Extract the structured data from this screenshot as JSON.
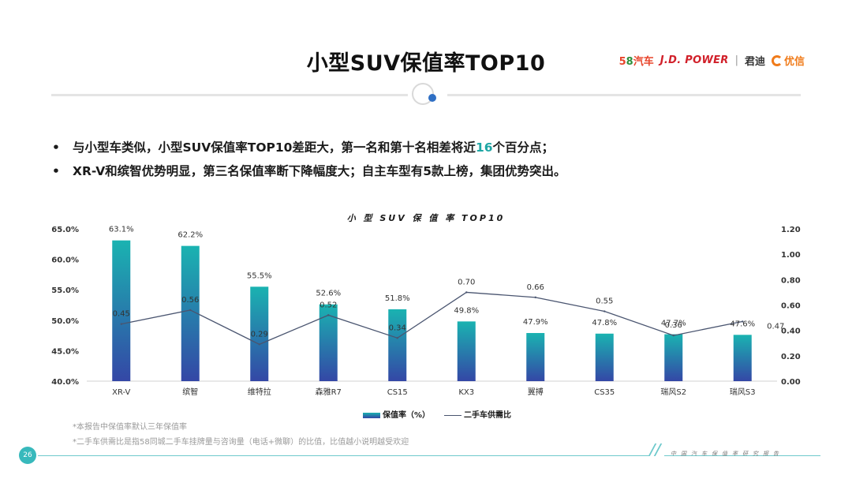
{
  "page": {
    "title": "小型SUV保值率TOP10",
    "bullets": [
      {
        "before": "与小型车类似，小型SUV保值率TOP10差距大，第一名和第十名相差将近",
        "highlight": "16",
        "after": "个百分点；"
      },
      {
        "before": "XR-V和缤智优势明显，第三名保值率断下降幅度大；自主车型有5款上榜，集团优势突出。",
        "highlight": "",
        "after": ""
      }
    ],
    "bullet_symbol": "•",
    "notes": [
      "*本报告中保值率默认三年保值率",
      "*二手车供需比是指58同城二手车挂牌量与咨询量（电话+微聊）的比值，比值越小说明越受欢迎"
    ],
    "page_number": "26",
    "footer_text": "中国汽车保值率研究报告",
    "logos": {
      "brand_58_num_a": "5",
      "brand_58_num_b": "8",
      "brand_58_text": "汽车",
      "jdpower": "J.D. POWER",
      "separator": "|",
      "jundi": "君迪",
      "youxin": "优信"
    }
  },
  "colors": {
    "bar_top": "#1ab3b1",
    "bar_bottom": "#3447a6",
    "line": "#4a5570",
    "accent": "#1fa6a4"
  },
  "chart_data": {
    "type": "bar",
    "title": "小 型 SUV 保 值 率 TOP10",
    "categories": [
      "XR-V",
      "缤智",
      "维特拉",
      "森雅R7",
      "CS15",
      "KX3",
      "翼搏",
      "CS35",
      "瑞风S2",
      "瑞风S3"
    ],
    "series": [
      {
        "name": "保值率（%）",
        "type": "bar",
        "axis": "left",
        "values": [
          63.1,
          62.2,
          55.5,
          52.6,
          51.8,
          49.8,
          47.9,
          47.8,
          47.7,
          47.6
        ],
        "labels": [
          "63.1%",
          "62.2%",
          "55.5%",
          "52.6%",
          "51.8%",
          "49.8%",
          "47.9%",
          "47.8%",
          "47.7%",
          "47.6%"
        ]
      },
      {
        "name": "二手车供需比",
        "type": "line",
        "axis": "right",
        "values": [
          0.45,
          0.56,
          0.29,
          0.52,
          0.34,
          0.7,
          0.66,
          0.55,
          0.36,
          0.47
        ],
        "labels": [
          "0.45",
          "0.56",
          "0.29",
          "0.52",
          "0.34",
          "0.70",
          "0.66",
          "0.55",
          "0.36",
          "0.47"
        ]
      }
    ],
    "y_left": {
      "min": 40,
      "max": 65,
      "ticks": [
        "40.0%",
        "45.0%",
        "50.0%",
        "55.0%",
        "60.0%",
        "65.0%"
      ]
    },
    "y_right": {
      "min": 0,
      "max": 1.2,
      "ticks": [
        "0.00",
        "0.20",
        "0.40",
        "0.60",
        "0.80",
        "1.00",
        "1.20"
      ]
    },
    "legend_position": "bottom"
  }
}
